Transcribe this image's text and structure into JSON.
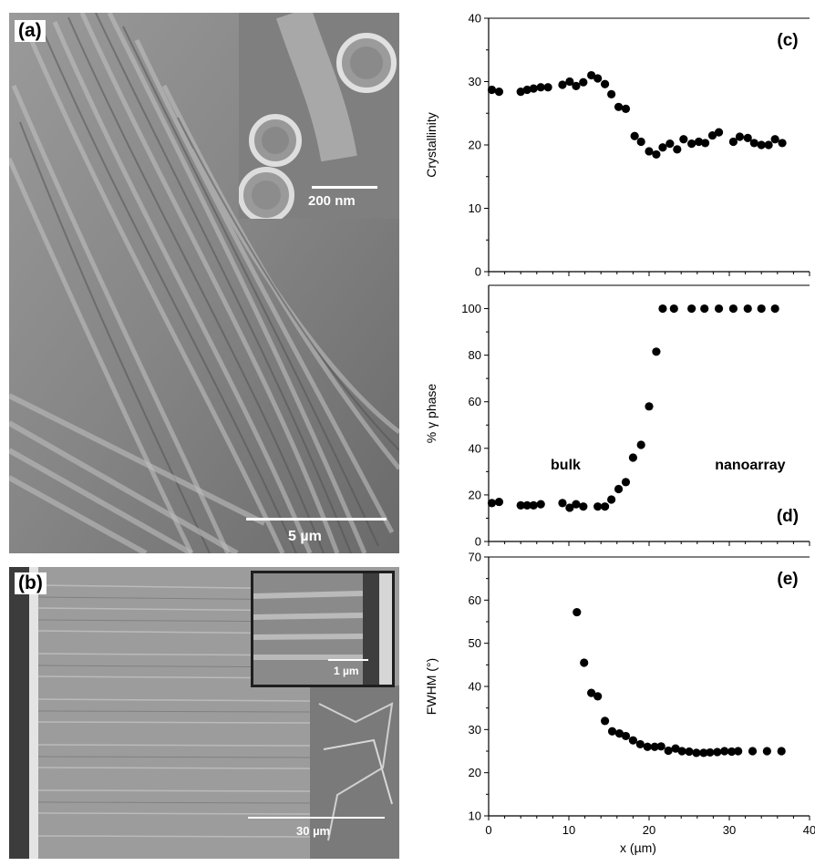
{
  "panels": {
    "a": {
      "label": "(a)",
      "inset_scale": "200 nm",
      "scale": "5 µm"
    },
    "b": {
      "label": "(b)",
      "inset_scale": "1 µm",
      "scale": "30 µm"
    }
  },
  "chart_data": [
    {
      "type": "scatter",
      "panel_label": "(c)",
      "ylabel": "Crystallinity",
      "xlim": [
        0,
        40
      ],
      "ylim": [
        0,
        40
      ],
      "yticks": [
        0,
        10,
        20,
        30,
        40
      ],
      "xticks": [
        0,
        10,
        20,
        30,
        40
      ],
      "show_x_ticklabels": false,
      "points": [
        [
          0.4,
          28.7
        ],
        [
          1.3,
          28.4
        ],
        [
          4.0,
          28.4
        ],
        [
          4.8,
          28.7
        ],
        [
          5.6,
          28.9
        ],
        [
          6.5,
          29.1
        ],
        [
          7.4,
          29.1
        ],
        [
          9.2,
          29.5
        ],
        [
          10.1,
          30.0
        ],
        [
          10.9,
          29.3
        ],
        [
          11.8,
          29.9
        ],
        [
          12.8,
          31.0
        ],
        [
          13.6,
          30.5
        ],
        [
          14.5,
          29.6
        ],
        [
          15.3,
          28.0
        ],
        [
          16.2,
          26.0
        ],
        [
          17.1,
          25.7
        ],
        [
          18.2,
          21.4
        ],
        [
          19.0,
          20.5
        ],
        [
          20.0,
          19.0
        ],
        [
          20.9,
          18.5
        ],
        [
          21.7,
          19.6
        ],
        [
          22.6,
          20.2
        ],
        [
          23.5,
          19.3
        ],
        [
          24.3,
          20.9
        ],
        [
          25.3,
          20.2
        ],
        [
          26.2,
          20.5
        ],
        [
          27.0,
          20.3
        ],
        [
          27.9,
          21.5
        ],
        [
          28.7,
          22.0
        ],
        [
          30.5,
          20.5
        ],
        [
          31.3,
          21.3
        ],
        [
          32.3,
          21.1
        ],
        [
          33.1,
          20.3
        ],
        [
          34.0,
          20.0
        ],
        [
          34.9,
          20.0
        ],
        [
          35.7,
          20.9
        ],
        [
          36.6,
          20.3
        ]
      ]
    },
    {
      "type": "scatter",
      "panel_label": "(d)",
      "ylabel": "% γ phase",
      "xlim": [
        0,
        40
      ],
      "ylim": [
        0,
        110
      ],
      "yticks": [
        0,
        20,
        40,
        60,
        80,
        100
      ],
      "xticks": [
        0,
        10,
        20,
        30,
        40
      ],
      "show_x_ticklabels": false,
      "annotations": [
        {
          "text": "bulk",
          "x": 9.6,
          "y": 31
        },
        {
          "text": "nanoarray",
          "x": 32.6,
          "y": 31
        }
      ],
      "points": [
        [
          0.4,
          16.5
        ],
        [
          1.3,
          17.0
        ],
        [
          4.0,
          15.5
        ],
        [
          4.8,
          15.5
        ],
        [
          5.6,
          15.5
        ],
        [
          6.5,
          16.0
        ],
        [
          9.2,
          16.5
        ],
        [
          10.1,
          14.5
        ],
        [
          10.9,
          16.0
        ],
        [
          11.8,
          15.0
        ],
        [
          13.6,
          15.0
        ],
        [
          14.5,
          15.0
        ],
        [
          15.3,
          18.0
        ],
        [
          16.2,
          22.5
        ],
        [
          17.1,
          25.5
        ],
        [
          18.0,
          36.0
        ],
        [
          19.0,
          41.5
        ],
        [
          20.0,
          58.0
        ],
        [
          20.9,
          81.5
        ],
        [
          21.7,
          100
        ],
        [
          23.1,
          100
        ],
        [
          25.3,
          100
        ],
        [
          26.9,
          100
        ],
        [
          28.7,
          100
        ],
        [
          30.5,
          100
        ],
        [
          32.3,
          100
        ],
        [
          34.0,
          100
        ],
        [
          35.7,
          100
        ]
      ]
    },
    {
      "type": "scatter",
      "panel_label": "(e)",
      "ylabel": "FWHM (°)",
      "xlabel": "x (µm)",
      "xlim": [
        0,
        40
      ],
      "ylim": [
        10,
        70
      ],
      "yticks": [
        10,
        20,
        30,
        40,
        50,
        60,
        70
      ],
      "xticks": [
        0,
        10,
        20,
        30,
        40
      ],
      "show_x_ticklabels": true,
      "points": [
        [
          11.0,
          57.2
        ],
        [
          11.9,
          45.5
        ],
        [
          12.8,
          38.5
        ],
        [
          13.6,
          37.7
        ],
        [
          14.5,
          32.0
        ],
        [
          15.4,
          29.6
        ],
        [
          16.3,
          29.1
        ],
        [
          17.1,
          28.5
        ],
        [
          18.0,
          27.5
        ],
        [
          18.9,
          26.6
        ],
        [
          19.8,
          26.0
        ],
        [
          20.7,
          26.0
        ],
        [
          21.5,
          26.1
        ],
        [
          22.4,
          25.1
        ],
        [
          23.3,
          25.6
        ],
        [
          24.1,
          25.0
        ],
        [
          25.0,
          24.9
        ],
        [
          25.9,
          24.6
        ],
        [
          26.8,
          24.6
        ],
        [
          27.6,
          24.7
        ],
        [
          28.5,
          24.8
        ],
        [
          29.4,
          25.0
        ],
        [
          30.3,
          24.9
        ],
        [
          31.1,
          25.0
        ],
        [
          32.9,
          25.0
        ],
        [
          34.7,
          25.0
        ],
        [
          36.5,
          25.0
        ]
      ]
    }
  ]
}
